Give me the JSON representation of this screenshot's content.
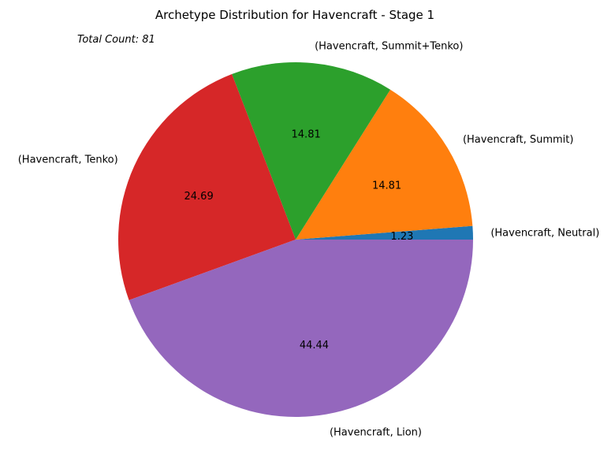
{
  "chart_data": {
    "type": "pie",
    "title": "Archetype Distribution for Havencraft - Stage 1",
    "annotation": "Total Count: 81",
    "start_angle": 0,
    "direction": "counterclockwise",
    "slices": [
      {
        "label": "(Havencraft, Neutral)",
        "value": 1.23,
        "display": "1.23",
        "color": "#1f77b4"
      },
      {
        "label": "(Havencraft, Summit)",
        "value": 14.81,
        "display": "14.81",
        "color": "#ff7f0e"
      },
      {
        "label": "(Havencraft, Summit+Tenko)",
        "value": 14.81,
        "display": "14.81",
        "color": "#2ca02c"
      },
      {
        "label": "(Havencraft, Tenko)",
        "value": 24.69,
        "display": "24.69",
        "color": "#d62728"
      },
      {
        "label": "(Havencraft, Lion)",
        "value": 44.44,
        "display": "44.44",
        "color": "#9467bd"
      }
    ]
  }
}
